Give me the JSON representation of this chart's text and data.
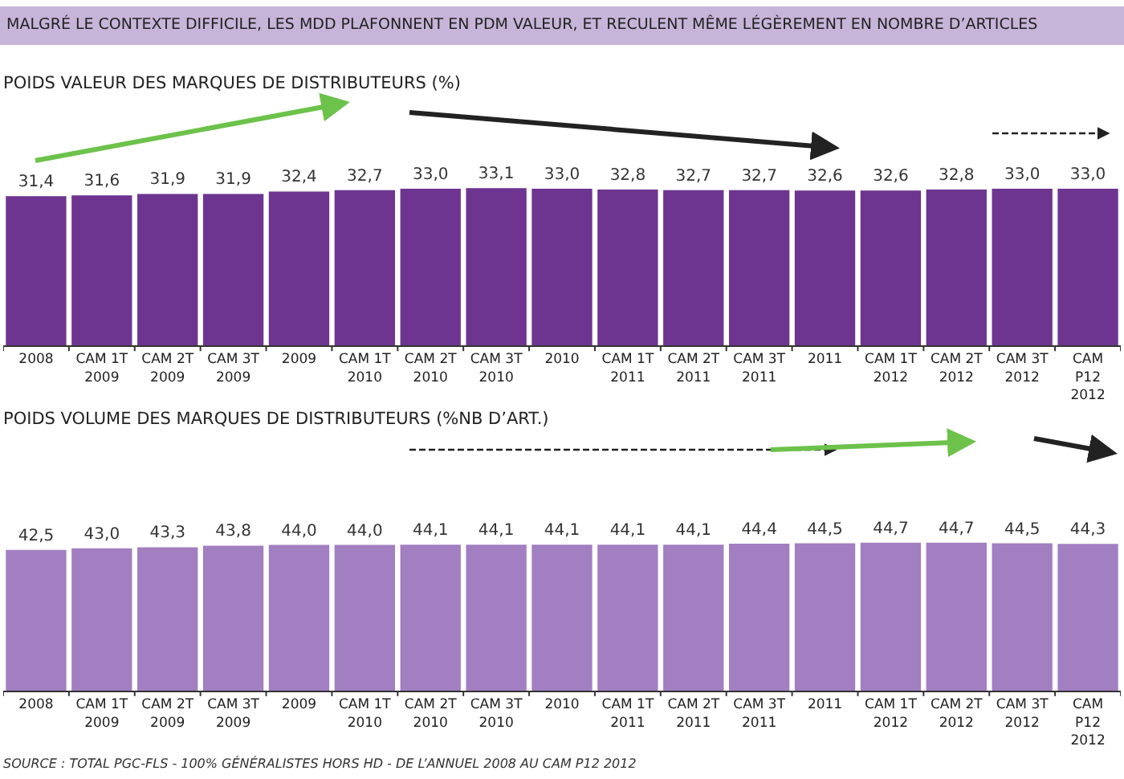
{
  "chart_data": [
    {
      "type": "bar",
      "title": "MALGRÉ LE CONTEXTE DIFFICILE, LES MDD PLAFONNENT EN PDM VALEUR, ET RECULENT MÊME LÉGÈREMENT EN NOMBRE D’ARTICLES",
      "subtitle": "POIDS VALEUR DES MARQUES DE DISTRIBUTEURS (%)",
      "categories": [
        "2008",
        "CAM 1T\n2009",
        "CAM 2T\n2009",
        "CAM 3T\n2009",
        "2009",
        "CAM 1T\n2010",
        "CAM 2T\n2010",
        "CAM 3T\n2010",
        "2010",
        "CAM 1T\n2011",
        "CAM 2T\n2011",
        "CAM 3T\n2011",
        "2011",
        "CAM 1T\n2012",
        "CAM 2T\n2012",
        "CAM 3T\n2012",
        "CAM\nP12\n2012"
      ],
      "values": [
        31.4,
        31.6,
        31.9,
        31.9,
        32.4,
        32.7,
        33.0,
        33.1,
        33.0,
        32.8,
        32.7,
        32.7,
        32.6,
        32.6,
        32.8,
        33.0,
        33.0
      ],
      "value_labels": [
        "31,4",
        "31,6",
        "31,9",
        "31,9",
        "32,4",
        "32,7",
        "33,0",
        "33,1",
        "33,0",
        "32,8",
        "32,7",
        "32,7",
        "32,6",
        "32,6",
        "32,8",
        "33,0",
        "33,0"
      ],
      "color": "#6d3590",
      "tick_labels": "x"
    },
    {
      "type": "bar",
      "title": "POIDS VOLUME DES MARQUES DE DISTRIBUTEURS (%NB D’ART.)",
      "categories": [
        "2008",
        "CAM 1T\n2009",
        "CAM 2T\n2009",
        "CAM 3T\n2009",
        "2009",
        "CAM 1T\n2010",
        "CAM 2T\n2010",
        "CAM 3T\n2010",
        "2010",
        "CAM 1T\n2011",
        "CAM 2T\n2011",
        "CAM 3T\n2011",
        "2011",
        "CAM 1T\n2012",
        "CAM 2T\n2012",
        "CAM 3T\n2012",
        "CAM\nP12\n2012"
      ],
      "values": [
        42.5,
        43.0,
        43.3,
        43.8,
        44.0,
        44.0,
        44.1,
        44.1,
        44.1,
        44.1,
        44.1,
        44.4,
        44.5,
        44.7,
        44.7,
        44.5,
        44.3
      ],
      "value_labels": [
        "42,5",
        "43,0",
        "43,3",
        "43,8",
        "44,0",
        "44,0",
        "44,1",
        "44,1",
        "44,1",
        "44,1",
        "44,1",
        "44,4",
        "44,5",
        "44,7",
        "44,7",
        "44,5",
        "44,3"
      ],
      "color": "#a27fc0",
      "tick_labels": "x",
      "annotations": [
        "SOURCE : TOTAL PGC-FLS - 100% GÉNÉRALISTES HORS HD - DE L’ANNUEL 2008 AU CAM P12 2012"
      ]
    }
  ]
}
